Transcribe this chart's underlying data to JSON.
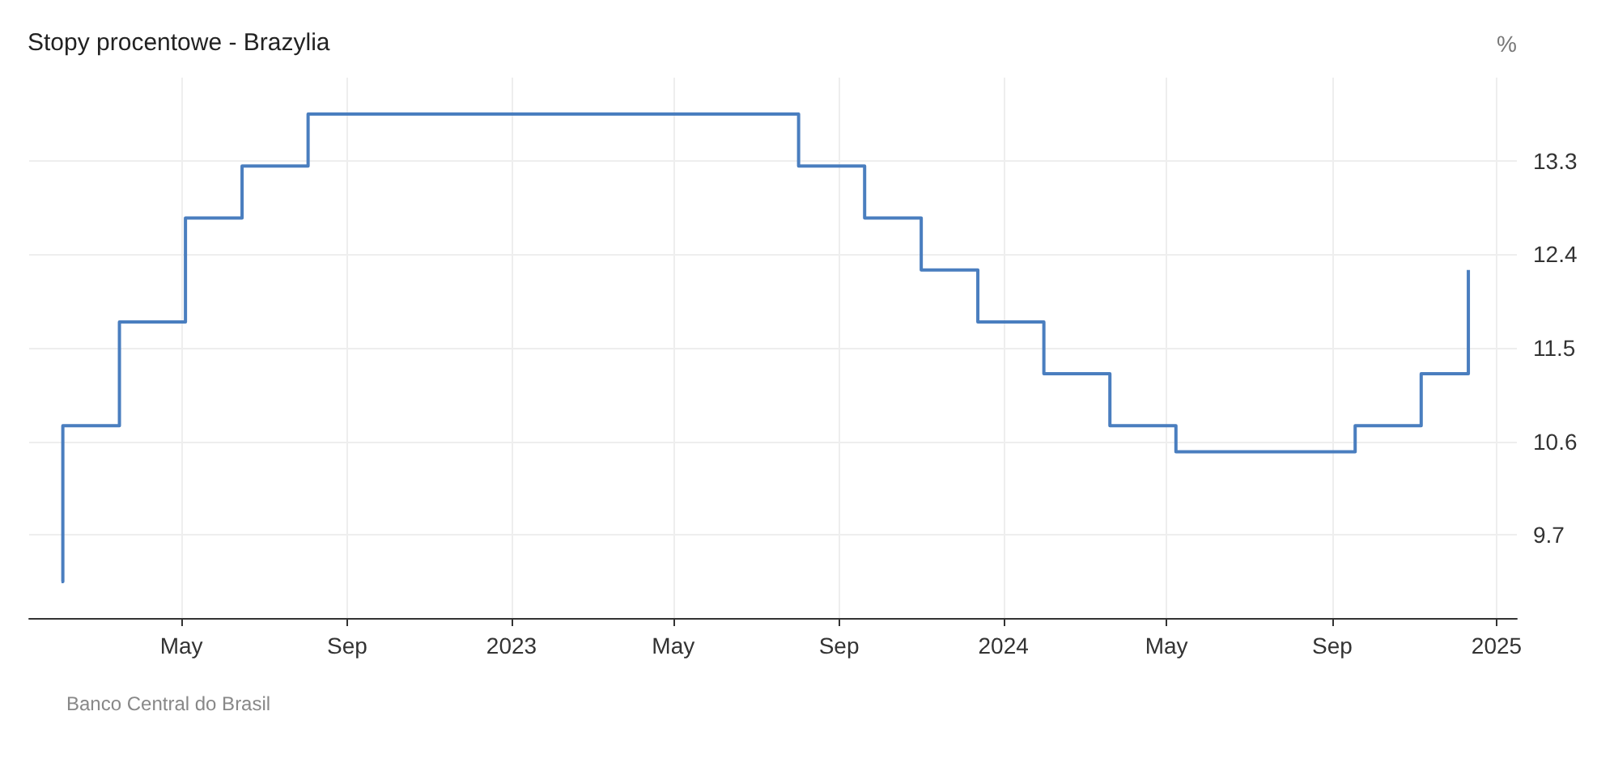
{
  "chart_data": {
    "type": "step",
    "title": "Stopy procentowe - Brazylia",
    "ylabel": "%",
    "annotations": [
      "Banco Central do Brasil"
    ],
    "x": [
      "2022-02-01",
      "2022-02-02",
      "2022-03-16",
      "2022-05-04",
      "2022-06-15",
      "2022-08-03",
      "2023-08-02",
      "2023-09-20",
      "2023-11-01",
      "2023-12-13",
      "2024-01-31",
      "2024-03-20",
      "2024-05-08",
      "2024-09-18",
      "2024-11-06",
      "2024-12-11"
    ],
    "series": [
      {
        "color": "#4a7ebf",
        "values": [
          9.25,
          10.75,
          11.75,
          12.75,
          13.25,
          13.75,
          13.25,
          12.75,
          12.25,
          11.75,
          11.25,
          10.75,
          10.5,
          10.75,
          11.25,
          12.25
        ]
      }
    ],
    "xlim": [
      "2022-01-08",
      "2025-01-16"
    ],
    "xticks": [
      {
        "value": "2022-05-01",
        "label": "May"
      },
      {
        "value": "2022-09-01",
        "label": "Sep"
      },
      {
        "value": "2023-01-01",
        "label": "2023"
      },
      {
        "value": "2023-05-01",
        "label": "May"
      },
      {
        "value": "2023-09-01",
        "label": "Sep"
      },
      {
        "value": "2024-01-01",
        "label": "2024"
      },
      {
        "value": "2024-05-01",
        "label": "May"
      },
      {
        "value": "2024-09-01",
        "label": "Sep"
      },
      {
        "value": "2025-01-01",
        "label": "2025"
      }
    ],
    "ylim": [
      8.9,
      14.1
    ],
    "yticks": [
      9.7,
      10.6,
      11.5,
      12.4,
      13.3
    ],
    "grid": true,
    "marker": "none",
    "line_style": "solid"
  }
}
